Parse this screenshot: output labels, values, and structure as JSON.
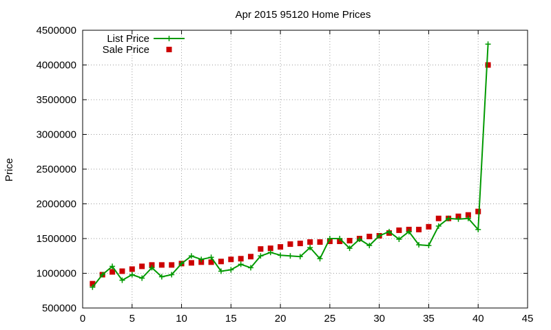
{
  "chart_data": {
    "type": "line",
    "title": "Apr 2015 95120 Home Prices",
    "xlabel": "",
    "ylabel": "Price",
    "xlim": [
      0,
      45
    ],
    "ylim": [
      500000,
      4500000
    ],
    "x_ticks": [
      0,
      5,
      10,
      15,
      20,
      25,
      30,
      35,
      40,
      45
    ],
    "y_ticks": [
      500000,
      1000000,
      1500000,
      2000000,
      2500000,
      3000000,
      3500000,
      4000000,
      4500000
    ],
    "x_tick_labels": [
      "0",
      "5",
      "10",
      "15",
      "20",
      "25",
      "30",
      "35",
      "40",
      "45"
    ],
    "y_tick_labels": [
      "500000",
      "1000000",
      "1500000",
      "2000000",
      "2500000",
      "3000000",
      "3500000",
      "4000000",
      "4500000"
    ],
    "grid": true,
    "legend_position": "top-left",
    "series": [
      {
        "name": "List Price",
        "style": "linespoints",
        "marker": "plus",
        "color": "#009900",
        "x": [
          1,
          2,
          3,
          4,
          5,
          6,
          7,
          8,
          9,
          10,
          11,
          12,
          13,
          14,
          15,
          16,
          17,
          18,
          19,
          20,
          21,
          22,
          23,
          24,
          25,
          26,
          27,
          28,
          29,
          30,
          31,
          32,
          33,
          34,
          35,
          36,
          37,
          38,
          39,
          40,
          41
        ],
        "values": [
          800000,
          980000,
          1100000,
          900000,
          980000,
          930000,
          1080000,
          950000,
          980000,
          1140000,
          1250000,
          1200000,
          1230000,
          1030000,
          1050000,
          1130000,
          1080000,
          1250000,
          1300000,
          1260000,
          1250000,
          1240000,
          1370000,
          1210000,
          1500000,
          1500000,
          1360000,
          1490000,
          1400000,
          1540000,
          1600000,
          1490000,
          1600000,
          1410000,
          1400000,
          1680000,
          1790000,
          1780000,
          1790000,
          1630000,
          4300000
        ]
      },
      {
        "name": "Sale Price",
        "style": "points",
        "marker": "square",
        "color": "#cc0000",
        "x": [
          1,
          2,
          3,
          4,
          5,
          6,
          7,
          8,
          9,
          10,
          11,
          12,
          13,
          14,
          15,
          16,
          17,
          18,
          19,
          20,
          21,
          22,
          23,
          24,
          25,
          26,
          27,
          28,
          29,
          30,
          31,
          32,
          33,
          34,
          35,
          36,
          37,
          38,
          39,
          40,
          41
        ],
        "values": [
          850000,
          980000,
          1020000,
          1030000,
          1060000,
          1100000,
          1120000,
          1120000,
          1120000,
          1140000,
          1150000,
          1160000,
          1160000,
          1170000,
          1200000,
          1210000,
          1240000,
          1350000,
          1360000,
          1380000,
          1420000,
          1430000,
          1450000,
          1450000,
          1460000,
          1460000,
          1470000,
          1500000,
          1530000,
          1540000,
          1580000,
          1620000,
          1630000,
          1630000,
          1670000,
          1790000,
          1790000,
          1820000,
          1840000,
          1890000,
          4000000
        ]
      }
    ]
  }
}
